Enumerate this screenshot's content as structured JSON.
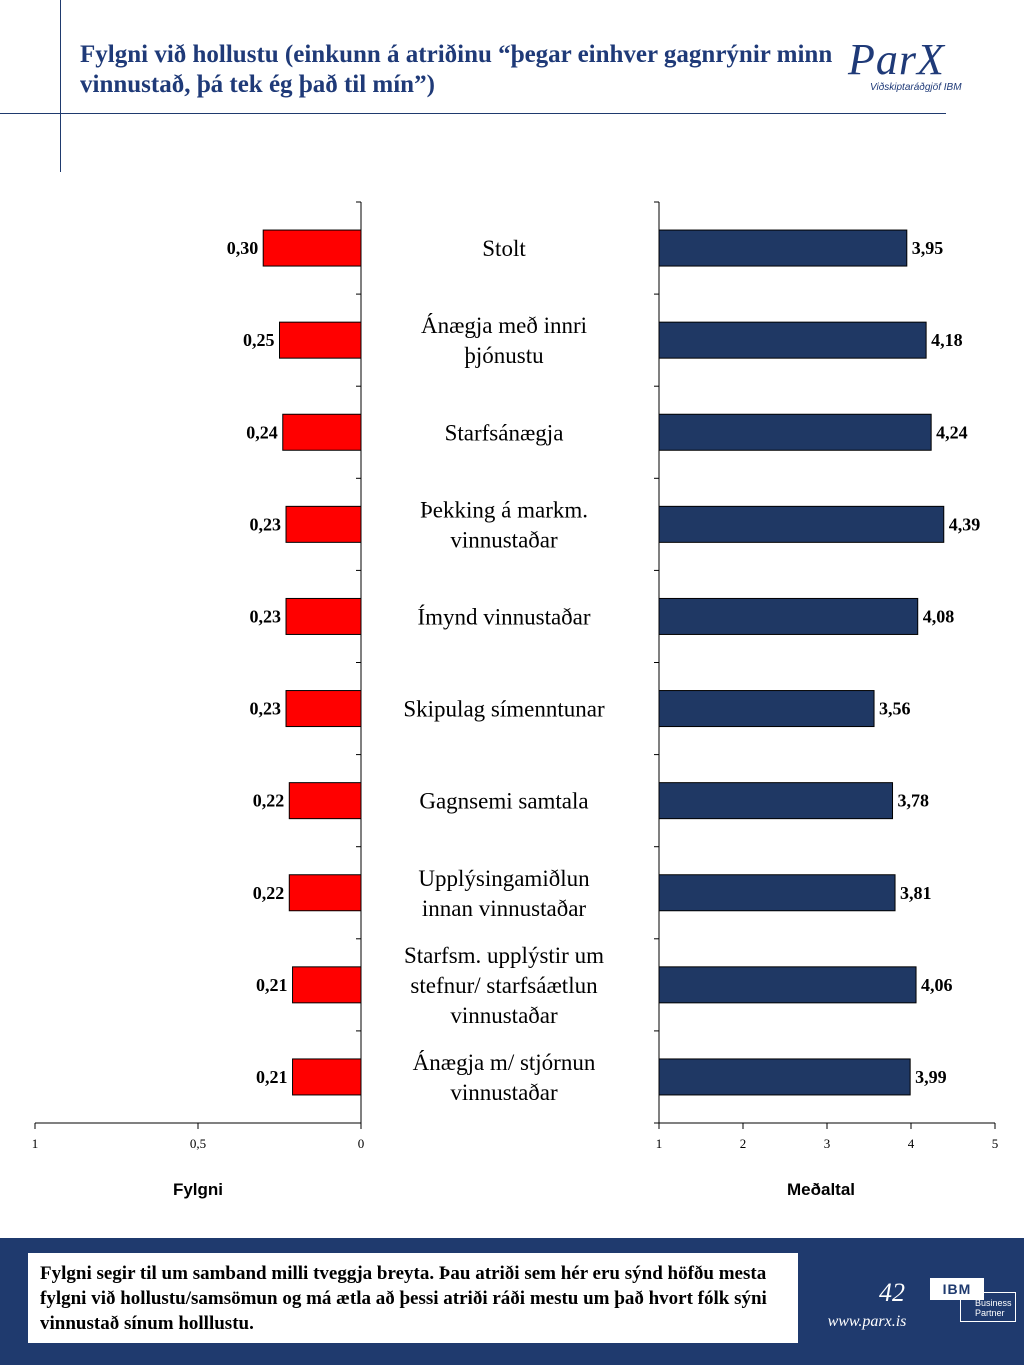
{
  "header": {
    "title": "Fylgni við hollustu (einkunn á atriðinu “þegar einhver gagnrýnir minn vinnustað, þá tek ég það til mín”)",
    "logo_text": "ParX",
    "logo_sub": "Viðskiptaráðgjöf IBM"
  },
  "chart_data": [
    {
      "type": "bar",
      "orientation": "horizontal",
      "xlabel": "Fylgni",
      "reversed_axis": true,
      "xlim": [
        0,
        1
      ],
      "ticks": [
        "1",
        "0,5",
        "0"
      ],
      "categories": [
        "Stolt",
        "Ánægja með innri þjónustu",
        "Starfsánægja",
        "Þekking á markm. vinnustaðar",
        "Ímynd vinnustaðar",
        "Skipulag símenntunar",
        "Gagnsemi samtala",
        "Upplýsingamiðlun innan vinnustaðar",
        "Starfsm. upplýstir um stefnur/ starfsáætlun vinnustaðar",
        "Ánægja m/ stjórnun vinnustaðar"
      ],
      "values": [
        0.3,
        0.25,
        0.24,
        0.23,
        0.23,
        0.23,
        0.22,
        0.22,
        0.21,
        0.21
      ],
      "labels": [
        "0,30",
        "0,25",
        "0,24",
        "0,23",
        "0,23",
        "0,23",
        "0,22",
        "0,22",
        "0,21",
        "0,21"
      ],
      "color": "#ff0000"
    },
    {
      "type": "bar",
      "orientation": "horizontal",
      "xlabel": "Meðaltal",
      "xlim": [
        1,
        5
      ],
      "ticks": [
        "1",
        "2",
        "3",
        "4",
        "5"
      ],
      "categories": [
        "Stolt",
        "Ánægja með innri þjónustu",
        "Starfsánægja",
        "Þekking á markm. vinnustaðar",
        "Ímynd vinnustaðar",
        "Skipulag símenntunar",
        "Gagnsemi samtala",
        "Upplýsingamiðlun innan vinnustaðar",
        "Starfsm. upplýstir um stefnur/ starfsáætlun vinnustaðar",
        "Ánægja m/ stjórnun vinnustaðar"
      ],
      "values": [
        3.95,
        4.18,
        4.24,
        4.39,
        4.08,
        3.56,
        3.78,
        3.81,
        4.06,
        3.99
      ],
      "labels": [
        "3,95",
        "4,18",
        "4,24",
        "4,39",
        "4,08",
        "3,56",
        "3,78",
        "3,81",
        "4,06",
        "3,99"
      ],
      "color": "#1f3864"
    }
  ],
  "category_lines": [
    [
      "Stolt"
    ],
    [
      "Ánægja með innri",
      "þjónustu"
    ],
    [
      "Starfsánægja"
    ],
    [
      "Þekking á markm.",
      "vinnustaðar"
    ],
    [
      "Ímynd vinnustaðar"
    ],
    [
      "Skipulag símenntunar"
    ],
    [
      "Gagnsemi samtala"
    ],
    [
      "Upplýsingamiðlun",
      "innan vinnustaðar"
    ],
    [
      "Starfsm. upplýstir um",
      "stefnur/ starfsáætlun",
      "vinnustaðar"
    ],
    [
      "Ánægja m/ stjórnun",
      "vinnustaðar"
    ]
  ],
  "footer": {
    "note": "Fylgni segir til um samband milli tveggja breyta. Þau atriði sem hér eru sýnd höfðu mesta fylgni við hollustu/samsömun og má ætla að þessi atriði ráði mestu um það hvort fólk sýni vinnustað sínum holllustu.",
    "page_number": "42",
    "url": "www.parx.is",
    "ibm": "IBM",
    "ibm_partner": "Business Partner"
  }
}
